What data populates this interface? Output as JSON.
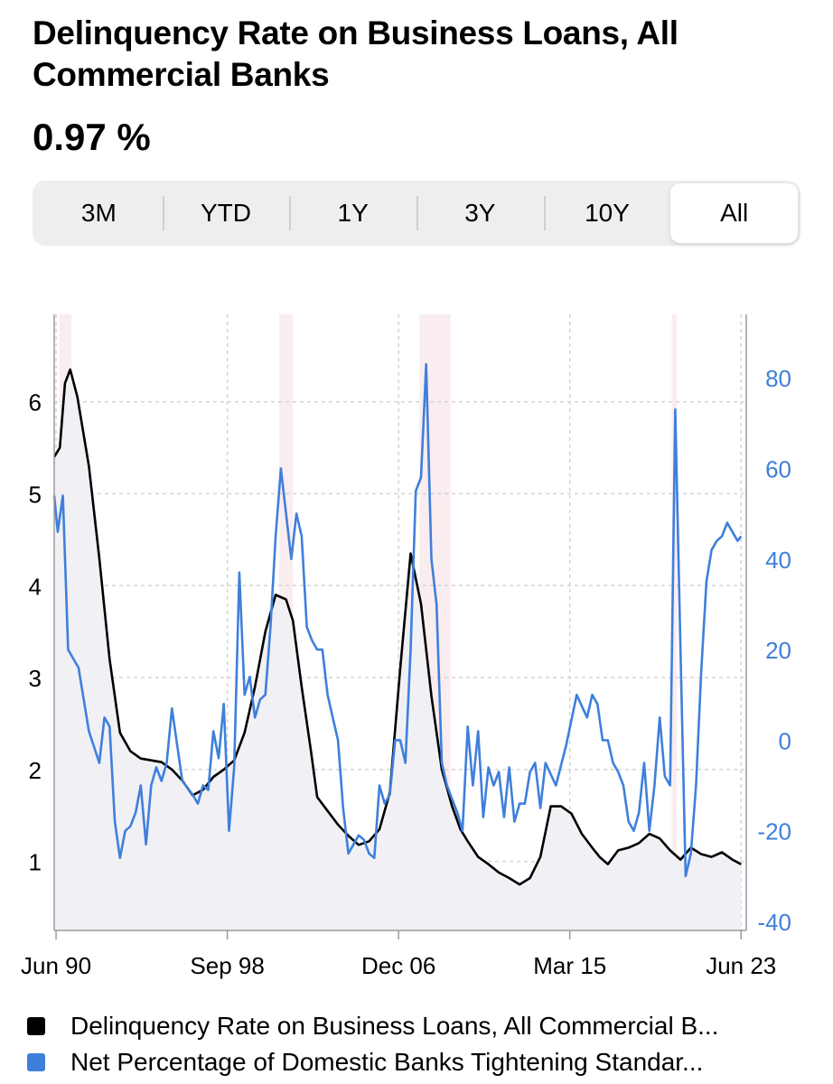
{
  "header": {
    "title": "Delinquency Rate on Business Loans, All Commercial Banks",
    "current_value": "0.97 %"
  },
  "range_selector": {
    "options": [
      "3M",
      "YTD",
      "1Y",
      "3Y",
      "10Y",
      "All"
    ],
    "selected": "All"
  },
  "colors": {
    "delinquency": "#000000",
    "tightening": "#3f7fdc",
    "area_fill": "#f1f0f5",
    "grid": "#d4d4d8",
    "recession": "#f5dfe2"
  },
  "chart_data": {
    "type": "line",
    "x_ticks": [
      "Jun 90",
      "Sep 98",
      "Dec 06",
      "Mar 15",
      "Jun 23"
    ],
    "x_tick_years": [
      1990.42,
      1998.67,
      2006.92,
      2015.17,
      2023.42
    ],
    "xlim": [
      1990.33,
      2023.67
    ],
    "y_left": {
      "ticks": [
        1,
        2,
        3,
        4,
        5,
        6
      ],
      "ylim": [
        0.25,
        6.95
      ]
    },
    "y_right": {
      "ticks": [
        -40,
        -20,
        0,
        20,
        40,
        60,
        80
      ],
      "ylim": [
        -42,
        94
      ]
    },
    "legend": "bottom",
    "grid": true,
    "recessions": [
      [
        1990.58,
        1991.17
      ],
      [
        2001.17,
        2001.83
      ],
      [
        2007.92,
        2009.42
      ],
      [
        2020.08,
        2020.33
      ]
    ],
    "series": [
      {
        "name": "Delinquency Rate on Business Loans, All Commercial Banks",
        "axis": "left",
        "style": "line-area",
        "x": [
          1990.33,
          1990.6,
          1990.85,
          1991.1,
          1991.45,
          1992.0,
          1992.5,
          1993.0,
          1993.5,
          1994.0,
          1994.5,
          1995.0,
          1995.5,
          1996.0,
          1996.5,
          1997.0,
          1997.5,
          1998.0,
          1998.5,
          1999.0,
          1999.5,
          2000.0,
          2000.5,
          2001.0,
          2001.5,
          2001.83,
          2002.25,
          2002.7,
          2003.0,
          2003.5,
          2004.0,
          2004.5,
          2005.0,
          2005.5,
          2006.0,
          2006.5,
          2007.0,
          2007.5,
          2008.0,
          2008.5,
          2009.0,
          2009.5,
          2009.9,
          2010.25,
          2010.75,
          2011.25,
          2011.75,
          2012.25,
          2012.75,
          2013.25,
          2013.75,
          2014.25,
          2014.75,
          2015.25,
          2015.75,
          2016.25,
          2016.6,
          2017.0,
          2017.5,
          2018.0,
          2018.5,
          2019.0,
          2019.5,
          2020.0,
          2020.5,
          2021.0,
          2021.5,
          2022.0,
          2022.5,
          2023.0,
          2023.42
        ],
        "values": [
          5.4,
          5.5,
          6.2,
          6.35,
          6.05,
          5.3,
          4.3,
          3.2,
          2.4,
          2.2,
          2.12,
          2.1,
          2.08,
          2.0,
          1.88,
          1.72,
          1.78,
          1.92,
          2.0,
          2.1,
          2.4,
          2.9,
          3.5,
          3.9,
          3.85,
          3.62,
          2.9,
          2.2,
          1.7,
          1.55,
          1.4,
          1.28,
          1.18,
          1.22,
          1.35,
          1.75,
          3.1,
          4.35,
          3.8,
          2.8,
          2.0,
          1.6,
          1.35,
          1.22,
          1.05,
          0.97,
          0.88,
          0.82,
          0.75,
          0.82,
          1.05,
          1.6,
          1.6,
          1.52,
          1.3,
          1.15,
          1.05,
          0.97,
          1.12,
          1.15,
          1.2,
          1.3,
          1.25,
          1.12,
          1.02,
          1.15,
          1.08,
          1.05,
          1.1,
          1.02,
          0.97
        ]
      },
      {
        "name": "Net Percentage of Domestic Banks Tightening Standards for Commercial and Industrial Loans to Large and Middle-Market Firms",
        "axis": "right",
        "style": "line",
        "x": [
          1990.33,
          1990.5,
          1990.75,
          1991.0,
          1991.25,
          1991.5,
          1992.0,
          1992.5,
          1992.75,
          1993.0,
          1993.25,
          1993.5,
          1993.75,
          1994.0,
          1994.25,
          1994.5,
          1994.75,
          1995.0,
          1995.25,
          1995.5,
          1995.75,
          1996.0,
          1996.5,
          1997.0,
          1997.25,
          1997.5,
          1997.75,
          1998.0,
          1998.25,
          1998.5,
          1998.75,
          1999.0,
          1999.25,
          1999.5,
          1999.75,
          2000.0,
          2000.25,
          2000.5,
          2000.75,
          2001.0,
          2001.25,
          2001.5,
          2001.75,
          2002.0,
          2002.25,
          2002.5,
          2002.75,
          2003.0,
          2003.25,
          2003.5,
          2003.75,
          2004.0,
          2004.25,
          2004.5,
          2005.0,
          2005.25,
          2005.5,
          2005.75,
          2006.0,
          2006.25,
          2006.5,
          2006.75,
          2007.0,
          2007.25,
          2007.5,
          2007.75,
          2008.0,
          2008.25,
          2008.5,
          2008.75,
          2009.0,
          2009.25,
          2009.5,
          2009.75,
          2010.0,
          2010.25,
          2010.5,
          2010.75,
          2011.0,
          2011.25,
          2011.5,
          2011.75,
          2012.0,
          2012.25,
          2012.5,
          2012.75,
          2013.0,
          2013.25,
          2013.5,
          2013.75,
          2014.0,
          2014.5,
          2015.0,
          2015.5,
          2016.0,
          2016.25,
          2016.5,
          2016.75,
          2017.0,
          2017.25,
          2017.5,
          2017.75,
          2018.0,
          2018.25,
          2018.5,
          2018.75,
          2019.0,
          2019.25,
          2019.5,
          2019.75,
          2020.0,
          2020.25,
          2020.5,
          2020.75,
          2021.0,
          2021.25,
          2021.5,
          2021.75,
          2022.0,
          2022.25,
          2022.5,
          2022.75,
          2023.0,
          2023.25,
          2023.42
        ],
        "values": [
          54,
          46,
          54,
          20,
          18,
          16,
          2,
          -5,
          5,
          3,
          -18,
          -26,
          -20,
          -19,
          -16,
          -10,
          -23,
          -10,
          -6,
          -9,
          -5,
          7,
          -9,
          -12,
          -14,
          -10,
          -11,
          2,
          -4,
          8,
          -20,
          -6,
          37,
          10,
          14,
          5,
          9,
          10,
          25,
          45,
          60,
          50,
          40,
          50,
          45,
          25,
          22,
          20,
          20,
          10,
          5,
          0,
          -15,
          -25,
          -21,
          -22,
          -25,
          -26,
          -10,
          -14,
          -12,
          0,
          0,
          -5,
          20,
          55,
          58,
          83,
          40,
          30,
          -5,
          -10,
          -13,
          -16,
          -20,
          3,
          -10,
          2,
          -17,
          -6,
          -10,
          -7,
          -17,
          -6,
          -18,
          -14,
          -14,
          -7,
          -5,
          -15,
          -5,
          -10,
          -1,
          10,
          5,
          10,
          8,
          0,
          0,
          -5,
          -7,
          -10,
          -18,
          -20,
          -16,
          -5,
          -20,
          -10,
          5,
          -8,
          -10,
          73,
          20,
          -30,
          -25,
          -10,
          15,
          35,
          42,
          44,
          45,
          48,
          46,
          44,
          45
        ]
      }
    ]
  },
  "legend": {
    "items": [
      {
        "label": "Delinquency Rate on Business Loans, All Commercial B..."
      },
      {
        "label": "Net Percentage of Domestic Banks Tightening Standar..."
      }
    ]
  }
}
